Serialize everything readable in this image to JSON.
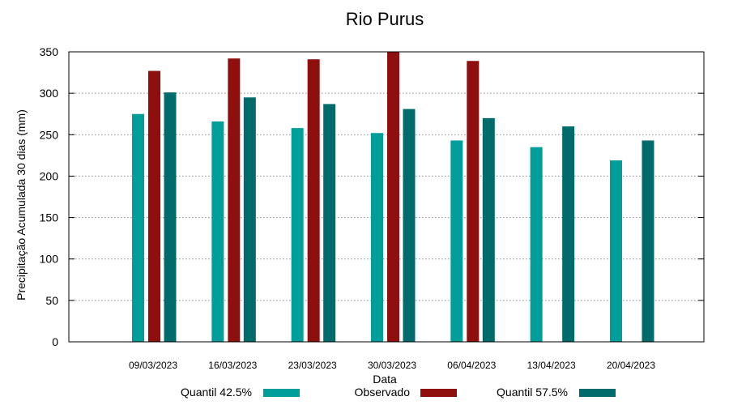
{
  "chart_data": {
    "type": "bar",
    "title": "Rio Purus",
    "xlabel": "Data",
    "ylabel": "Precipitação Acumulada 30 dias (mm)",
    "ylim": [
      0,
      350
    ],
    "yticks": [
      0,
      50,
      100,
      150,
      200,
      250,
      300,
      350
    ],
    "grid": true,
    "legend_position": "bottom",
    "categories": [
      "09/03/2023",
      "16/03/2023",
      "23/03/2023",
      "30/03/2023",
      "06/04/2023",
      "13/04/2023",
      "20/04/2023"
    ],
    "series": [
      {
        "name": "Quantil 42.5%",
        "color": "#009e9a",
        "values": [
          275,
          266,
          258,
          252,
          243,
          235,
          219
        ]
      },
      {
        "name": "Observado",
        "color": "#8f0e0e",
        "values": [
          327,
          342,
          341,
          350,
          339,
          null,
          null
        ]
      },
      {
        "name": "Quantil 57.5%",
        "color": "#006b6b",
        "values": [
          301,
          295,
          287,
          281,
          270,
          260,
          243
        ]
      }
    ]
  }
}
